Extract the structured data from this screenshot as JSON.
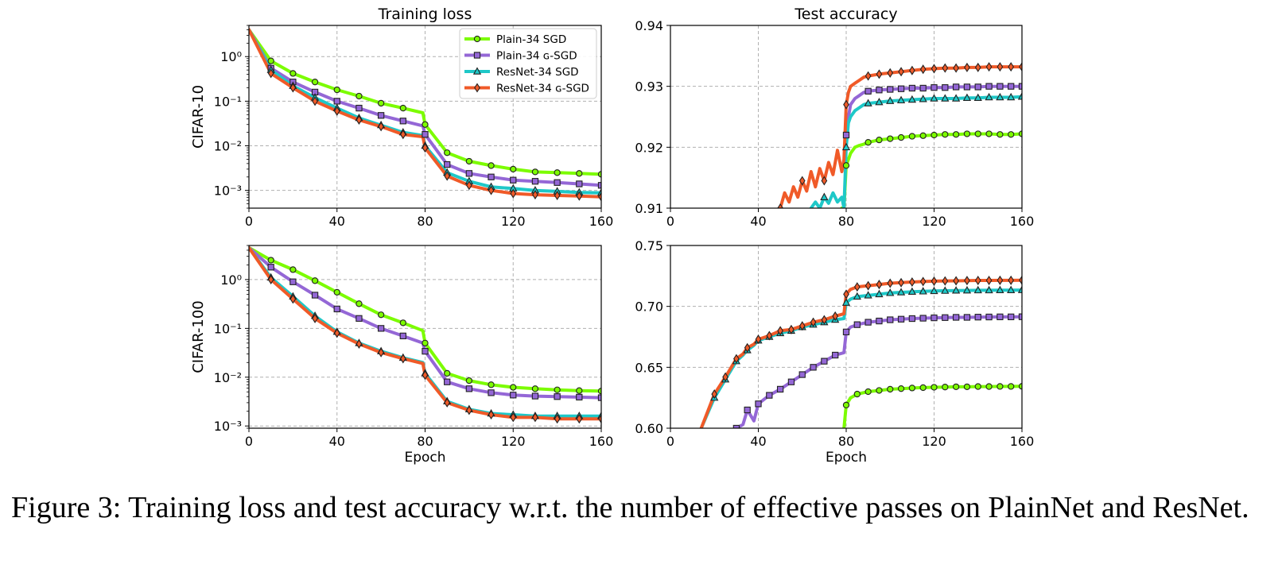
{
  "caption": "Figure 3: Training loss and test accuracy w.r.t.  the number of effective passes on PlainNet and ResNet.",
  "column_titles": [
    "Training loss",
    "Test accuracy"
  ],
  "row_labels": [
    "CIFAR-10",
    "CIFAR-100"
  ],
  "xlabel": "Epoch",
  "legend": [
    {
      "label": "Plain-34 SGD",
      "color": "#7cfc00",
      "marker": "circle"
    },
    {
      "label": "Plain-34 ɢ-SGD",
      "color": "#9467d6",
      "marker": "square"
    },
    {
      "label": "ResNet-34 SGD",
      "color": "#1ec8c8",
      "marker": "triangle"
    },
    {
      "label": "ResNet-34 ɢ-SGD",
      "color": "#f05a28",
      "marker": "diamond"
    }
  ],
  "chart_data": [
    {
      "type": "line",
      "title": "Training loss",
      "ylabel": "CIFAR-10",
      "xlim": [
        0,
        160
      ],
      "xticks": [
        0,
        40,
        80,
        120,
        160
      ],
      "yscale": "log",
      "ylim": [
        0.0004,
        5
      ],
      "yticks": [
        0.001,
        0.01,
        0.1,
        1
      ],
      "yticklabels": [
        "10⁻³",
        "10⁻²",
        "10⁻¹",
        "10⁰"
      ],
      "grid": true,
      "legend": "top-right",
      "x": [
        0,
        10,
        20,
        30,
        40,
        50,
        60,
        70,
        79,
        80,
        90,
        100,
        110,
        120,
        130,
        140,
        150,
        160
      ],
      "series": [
        {
          "name": "Plain-34 SGD",
          "values": [
            4.0,
            0.8,
            0.42,
            0.27,
            0.18,
            0.13,
            0.09,
            0.07,
            0.055,
            0.03,
            0.007,
            0.0045,
            0.0036,
            0.003,
            0.0026,
            0.0025,
            0.0024,
            0.0023
          ]
        },
        {
          "name": "Plain-34 ɢ-SGD",
          "values": [
            4.0,
            0.55,
            0.27,
            0.16,
            0.1,
            0.07,
            0.048,
            0.036,
            0.028,
            0.018,
            0.0038,
            0.0024,
            0.002,
            0.0017,
            0.0016,
            0.0015,
            0.0014,
            0.0013
          ]
        },
        {
          "name": "ResNet-34 SGD",
          "values": [
            4.0,
            0.5,
            0.22,
            0.12,
            0.07,
            0.042,
            0.029,
            0.02,
            0.017,
            0.01,
            0.0025,
            0.0016,
            0.0012,
            0.0011,
            0.001,
            0.00095,
            0.0009,
            0.00088
          ]
        },
        {
          "name": "ResNet-34 ɢ-SGD",
          "values": [
            4.0,
            0.42,
            0.2,
            0.1,
            0.06,
            0.038,
            0.027,
            0.018,
            0.016,
            0.009,
            0.0021,
            0.0013,
            0.001,
            0.00085,
            0.0008,
            0.00077,
            0.00075,
            0.00072
          ]
        }
      ]
    },
    {
      "type": "line",
      "title": "Test accuracy",
      "ylabel": "",
      "xlim": [
        0,
        160
      ],
      "xticks": [
        0,
        40,
        80,
        120,
        160
      ],
      "yscale": "linear",
      "ylim": [
        0.91,
        0.94
      ],
      "yticks": [
        0.91,
        0.92,
        0.93,
        0.94
      ],
      "yticklabels": [
        "0.91",
        "0.92",
        "0.93",
        "0.94"
      ],
      "grid": true,
      "x": [
        50,
        52,
        54,
        56,
        58,
        60,
        62,
        64,
        66,
        68,
        70,
        72,
        74,
        76,
        78,
        79,
        80,
        81,
        82,
        84,
        86,
        88,
        90,
        95,
        100,
        105,
        110,
        115,
        120,
        125,
        130,
        135,
        140,
        145,
        150,
        155,
        160
      ],
      "series": [
        {
          "name": "Plain-34 SGD",
          "values": [
            null,
            null,
            null,
            null,
            null,
            null,
            null,
            null,
            null,
            null,
            null,
            null,
            null,
            null,
            0.91,
            0.91,
            0.917,
            0.918,
            0.919,
            0.92,
            0.9203,
            0.9205,
            0.9208,
            0.9212,
            0.9214,
            0.9216,
            0.9218,
            0.9219,
            0.922,
            0.9221,
            0.9221,
            0.9222,
            0.9222,
            0.9222,
            0.9221,
            0.9221,
            0.9222
          ]
        },
        {
          "name": "Plain-34 ɢ-SGD",
          "values": [
            null,
            null,
            null,
            null,
            null,
            null,
            null,
            null,
            null,
            null,
            null,
            null,
            null,
            null,
            null,
            null,
            0.922,
            0.925,
            0.927,
            0.928,
            0.9285,
            0.929,
            0.9292,
            0.9294,
            0.9295,
            0.9296,
            0.9297,
            0.9297,
            0.9298,
            0.9298,
            0.9299,
            0.9299,
            0.9299,
            0.93,
            0.93,
            0.93,
            0.93
          ]
        },
        {
          "name": "ResNet-34 SGD",
          "values": [
            null,
            null,
            null,
            null,
            null,
            null,
            null,
            0.91,
            0.911,
            0.91,
            0.9118,
            0.9108,
            0.9125,
            0.911,
            0.9118,
            0.91,
            0.92,
            0.924,
            0.925,
            0.926,
            0.9265,
            0.927,
            0.9272,
            0.9274,
            0.9276,
            0.9277,
            0.9278,
            0.9279,
            0.928,
            0.928,
            0.928,
            0.9281,
            0.9281,
            0.9282,
            0.9282,
            0.9282,
            0.9283
          ]
        },
        {
          "name": "ResNet-34 ɢ-SGD",
          "values": [
            0.91,
            0.9125,
            0.911,
            0.9135,
            0.9118,
            0.9145,
            0.9128,
            0.916,
            0.9135,
            0.9165,
            0.9145,
            0.9175,
            0.9155,
            0.9195,
            0.916,
            0.918,
            0.927,
            0.929,
            0.93,
            0.9305,
            0.931,
            0.9315,
            0.9317,
            0.932,
            0.9322,
            0.9324,
            0.9326,
            0.9328,
            0.9329,
            0.933,
            0.933,
            0.9331,
            0.9331,
            0.9332,
            0.9332,
            0.9332,
            0.9332
          ]
        }
      ]
    },
    {
      "type": "line",
      "title": "",
      "ylabel": "CIFAR-100",
      "xlabel": "Epoch",
      "xlim": [
        0,
        160
      ],
      "xticks": [
        0,
        40,
        80,
        120,
        160
      ],
      "yscale": "log",
      "ylim": [
        0.0009,
        5
      ],
      "yticks": [
        0.001,
        0.01,
        0.1,
        1
      ],
      "yticklabels": [
        "10⁻³",
        "10⁻²",
        "10⁻¹",
        "10⁰"
      ],
      "grid": true,
      "x": [
        0,
        10,
        20,
        30,
        40,
        50,
        60,
        70,
        79,
        80,
        90,
        100,
        110,
        120,
        130,
        140,
        150,
        160
      ],
      "series": [
        {
          "name": "Plain-34 SGD",
          "values": [
            4.5,
            2.5,
            1.6,
            0.95,
            0.55,
            0.32,
            0.19,
            0.13,
            0.09,
            0.05,
            0.012,
            0.0085,
            0.007,
            0.0062,
            0.0058,
            0.0055,
            0.0053,
            0.0052
          ]
        },
        {
          "name": "Plain-34 ɢ-SGD",
          "values": [
            4.5,
            1.8,
            0.9,
            0.48,
            0.25,
            0.16,
            0.1,
            0.07,
            0.05,
            0.034,
            0.008,
            0.0058,
            0.0048,
            0.0043,
            0.0041,
            0.004,
            0.0039,
            0.0038
          ]
        },
        {
          "name": "ResNet-34 SGD",
          "values": [
            4.5,
            1.1,
            0.45,
            0.18,
            0.085,
            0.05,
            0.034,
            0.025,
            0.02,
            0.012,
            0.0032,
            0.0022,
            0.0018,
            0.0017,
            0.0016,
            0.0016,
            0.0016,
            0.0016
          ]
        },
        {
          "name": "ResNet-34 ɢ-SGD",
          "values": [
            4.5,
            1.0,
            0.4,
            0.16,
            0.08,
            0.048,
            0.032,
            0.024,
            0.019,
            0.011,
            0.003,
            0.0021,
            0.0017,
            0.0015,
            0.0015,
            0.0014,
            0.0014,
            0.0014
          ]
        }
      ]
    },
    {
      "type": "line",
      "title": "",
      "ylabel": "",
      "xlabel": "Epoch",
      "xlim": [
        0,
        160
      ],
      "xticks": [
        0,
        40,
        80,
        120,
        160
      ],
      "yscale": "linear",
      "ylim": [
        0.6,
        0.75
      ],
      "yticks": [
        0.6,
        0.65,
        0.7,
        0.75
      ],
      "yticklabels": [
        "0.60",
        "0.65",
        "0.70",
        "0.75"
      ],
      "grid": true,
      "x": [
        14,
        20,
        25,
        30,
        33,
        35,
        38,
        40,
        45,
        50,
        55,
        60,
        65,
        70,
        75,
        79,
        80,
        82,
        85,
        90,
        95,
        100,
        105,
        110,
        115,
        120,
        125,
        130,
        135,
        140,
        145,
        150,
        155,
        160
      ],
      "series": [
        {
          "name": "Plain-34 SGD",
          "values": [
            null,
            null,
            null,
            null,
            null,
            null,
            null,
            null,
            null,
            null,
            null,
            null,
            null,
            null,
            null,
            0.6,
            0.619,
            0.625,
            0.628,
            0.63,
            0.631,
            0.632,
            0.6325,
            0.633,
            0.6333,
            0.6336,
            0.6338,
            0.634,
            0.634,
            0.6342,
            0.6342,
            0.6343,
            0.6343,
            0.6344
          ]
        },
        {
          "name": "Plain-34 ɢ-SGD",
          "values": [
            null,
            null,
            null,
            0.6,
            0.603,
            0.615,
            0.606,
            0.62,
            0.627,
            0.632,
            0.638,
            0.644,
            0.65,
            0.655,
            0.66,
            0.662,
            0.679,
            0.683,
            0.685,
            0.687,
            0.688,
            0.689,
            0.6895,
            0.69,
            0.6903,
            0.6906,
            0.6908,
            0.691,
            0.691,
            0.6912,
            0.6913,
            0.6914,
            0.6914,
            0.6915
          ]
        },
        {
          "name": "ResNet-34 SGD",
          "values": [
            0.6,
            0.625,
            0.64,
            0.655,
            0.66,
            0.664,
            0.668,
            0.672,
            0.675,
            0.678,
            0.68,
            0.683,
            0.685,
            0.687,
            0.689,
            0.69,
            0.703,
            0.706,
            0.708,
            0.709,
            0.71,
            0.711,
            0.7115,
            0.712,
            0.7123,
            0.7126,
            0.7128,
            0.713,
            0.7131,
            0.7132,
            0.7132,
            0.7133,
            0.7133,
            0.7134
          ]
        },
        {
          "name": "ResNet-34 ɢ-SGD",
          "values": [
            0.6,
            0.628,
            0.642,
            0.657,
            0.661,
            0.666,
            0.669,
            0.673,
            0.676,
            0.68,
            0.681,
            0.684,
            0.687,
            0.689,
            0.692,
            0.694,
            0.71,
            0.714,
            0.716,
            0.717,
            0.718,
            0.719,
            0.7195,
            0.72,
            0.7204,
            0.7207,
            0.7209,
            0.721,
            0.7212,
            0.7213,
            0.7213,
            0.7214,
            0.7214,
            0.7215
          ]
        }
      ]
    }
  ]
}
